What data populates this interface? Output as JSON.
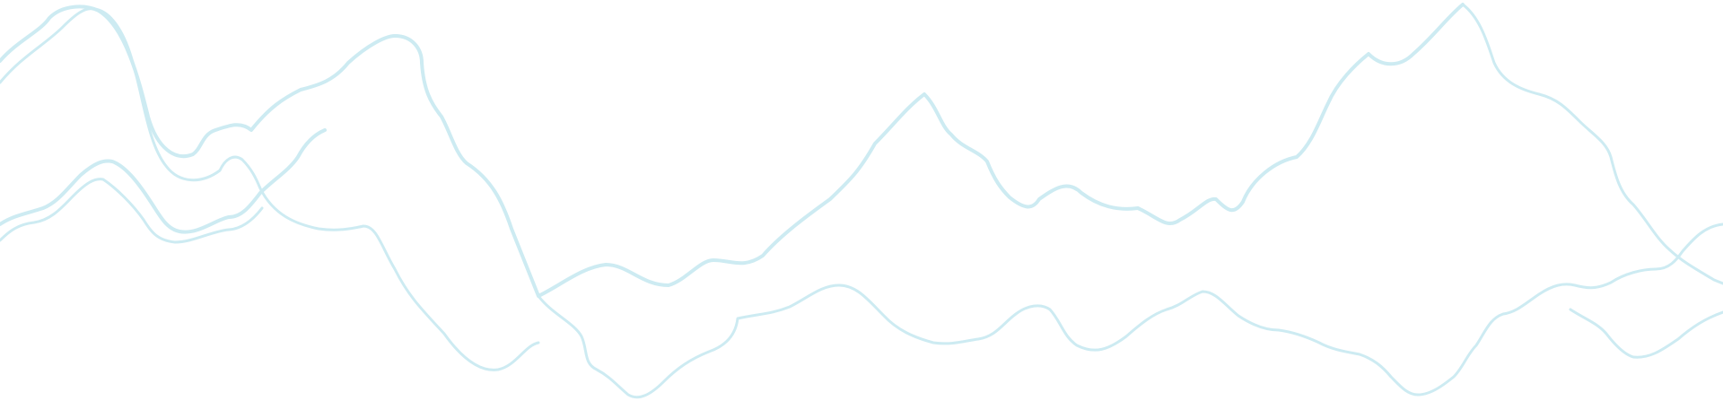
{
  "decoration": {
    "stroke_color": "#cdebf2",
    "fill_color": "#d8f0f6",
    "background_color": "#ffffff"
  }
}
